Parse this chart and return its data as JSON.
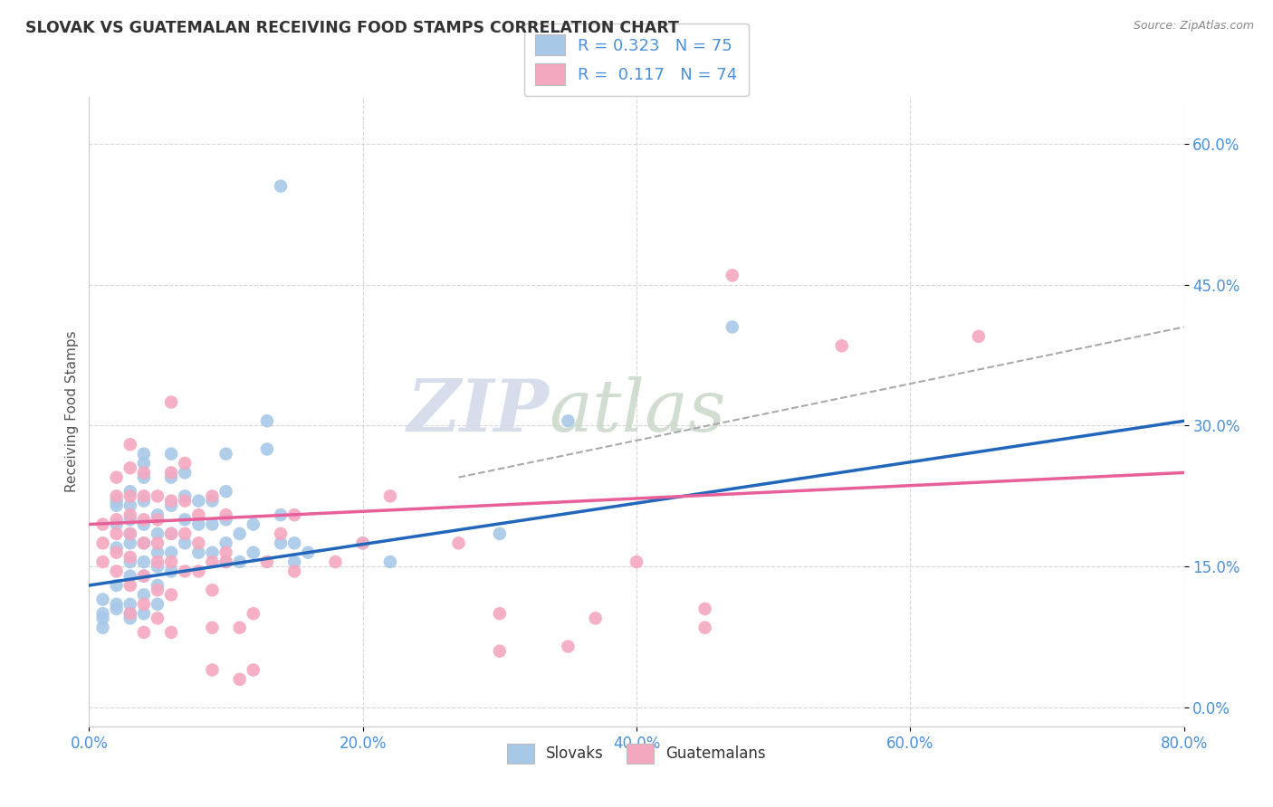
{
  "title": "SLOVAK VS GUATEMALAN RECEIVING FOOD STAMPS CORRELATION CHART",
  "source": "Source: ZipAtlas.com",
  "ylabel": "Receiving Food Stamps",
  "xlim": [
    0.0,
    0.8
  ],
  "ylim": [
    -0.02,
    0.65
  ],
  "slovak_color": "#a8c8e8",
  "guatemalan_color": "#f4a8c0",
  "slovak_line_color": "#2266bb",
  "guatemalan_line_color": "#e8609a",
  "dashed_line_color": "#aaaaaa",
  "legend_slovak_r": "0.323",
  "legend_slovak_n": "75",
  "legend_guatemalan_r": "0.117",
  "legend_guatemalan_n": "74",
  "watermark_zip": "ZIP",
  "watermark_atlas": "atlas",
  "title_color": "#333333",
  "axis_label_color": "#4a90d9",
  "slovak_line": [
    [
      0.0,
      0.13
    ],
    [
      0.8,
      0.305
    ]
  ],
  "guatemalan_line": [
    [
      0.0,
      0.195
    ],
    [
      0.8,
      0.25
    ]
  ],
  "dashed_line": [
    [
      0.27,
      0.245
    ],
    [
      0.8,
      0.405
    ]
  ],
  "slovak_points": [
    [
      0.01,
      0.115
    ],
    [
      0.01,
      0.085
    ],
    [
      0.01,
      0.1
    ],
    [
      0.01,
      0.095
    ],
    [
      0.02,
      0.105
    ],
    [
      0.02,
      0.11
    ],
    [
      0.02,
      0.13
    ],
    [
      0.02,
      0.17
    ],
    [
      0.02,
      0.195
    ],
    [
      0.02,
      0.215
    ],
    [
      0.02,
      0.22
    ],
    [
      0.03,
      0.095
    ],
    [
      0.03,
      0.1
    ],
    [
      0.03,
      0.11
    ],
    [
      0.03,
      0.14
    ],
    [
      0.03,
      0.155
    ],
    [
      0.03,
      0.175
    ],
    [
      0.03,
      0.185
    ],
    [
      0.03,
      0.2
    ],
    [
      0.03,
      0.215
    ],
    [
      0.03,
      0.23
    ],
    [
      0.04,
      0.1
    ],
    [
      0.04,
      0.12
    ],
    [
      0.04,
      0.14
    ],
    [
      0.04,
      0.155
    ],
    [
      0.04,
      0.175
    ],
    [
      0.04,
      0.195
    ],
    [
      0.04,
      0.22
    ],
    [
      0.04,
      0.245
    ],
    [
      0.04,
      0.26
    ],
    [
      0.04,
      0.27
    ],
    [
      0.05,
      0.11
    ],
    [
      0.05,
      0.13
    ],
    [
      0.05,
      0.15
    ],
    [
      0.05,
      0.165
    ],
    [
      0.05,
      0.185
    ],
    [
      0.05,
      0.205
    ],
    [
      0.06,
      0.145
    ],
    [
      0.06,
      0.165
    ],
    [
      0.06,
      0.185
    ],
    [
      0.06,
      0.215
    ],
    [
      0.06,
      0.245
    ],
    [
      0.06,
      0.27
    ],
    [
      0.07,
      0.175
    ],
    [
      0.07,
      0.2
    ],
    [
      0.07,
      0.225
    ],
    [
      0.07,
      0.25
    ],
    [
      0.08,
      0.165
    ],
    [
      0.08,
      0.195
    ],
    [
      0.08,
      0.22
    ],
    [
      0.09,
      0.165
    ],
    [
      0.09,
      0.195
    ],
    [
      0.09,
      0.22
    ],
    [
      0.1,
      0.155
    ],
    [
      0.1,
      0.175
    ],
    [
      0.1,
      0.2
    ],
    [
      0.1,
      0.23
    ],
    [
      0.1,
      0.27
    ],
    [
      0.11,
      0.155
    ],
    [
      0.11,
      0.185
    ],
    [
      0.12,
      0.165
    ],
    [
      0.12,
      0.195
    ],
    [
      0.13,
      0.275
    ],
    [
      0.13,
      0.305
    ],
    [
      0.14,
      0.175
    ],
    [
      0.14,
      0.205
    ],
    [
      0.14,
      0.555
    ],
    [
      0.15,
      0.155
    ],
    [
      0.15,
      0.175
    ],
    [
      0.16,
      0.165
    ],
    [
      0.2,
      0.175
    ],
    [
      0.22,
      0.155
    ],
    [
      0.3,
      0.185
    ],
    [
      0.35,
      0.305
    ],
    [
      0.47,
      0.405
    ]
  ],
  "guatemalan_points": [
    [
      0.01,
      0.155
    ],
    [
      0.01,
      0.175
    ],
    [
      0.01,
      0.195
    ],
    [
      0.02,
      0.145
    ],
    [
      0.02,
      0.165
    ],
    [
      0.02,
      0.185
    ],
    [
      0.02,
      0.2
    ],
    [
      0.02,
      0.225
    ],
    [
      0.02,
      0.245
    ],
    [
      0.03,
      0.1
    ],
    [
      0.03,
      0.13
    ],
    [
      0.03,
      0.16
    ],
    [
      0.03,
      0.185
    ],
    [
      0.03,
      0.205
    ],
    [
      0.03,
      0.225
    ],
    [
      0.03,
      0.255
    ],
    [
      0.03,
      0.28
    ],
    [
      0.04,
      0.08
    ],
    [
      0.04,
      0.11
    ],
    [
      0.04,
      0.14
    ],
    [
      0.04,
      0.175
    ],
    [
      0.04,
      0.2
    ],
    [
      0.04,
      0.225
    ],
    [
      0.04,
      0.25
    ],
    [
      0.05,
      0.095
    ],
    [
      0.05,
      0.125
    ],
    [
      0.05,
      0.155
    ],
    [
      0.05,
      0.175
    ],
    [
      0.05,
      0.2
    ],
    [
      0.05,
      0.225
    ],
    [
      0.06,
      0.08
    ],
    [
      0.06,
      0.12
    ],
    [
      0.06,
      0.155
    ],
    [
      0.06,
      0.185
    ],
    [
      0.06,
      0.22
    ],
    [
      0.06,
      0.25
    ],
    [
      0.06,
      0.325
    ],
    [
      0.07,
      0.145
    ],
    [
      0.07,
      0.185
    ],
    [
      0.07,
      0.22
    ],
    [
      0.07,
      0.26
    ],
    [
      0.08,
      0.145
    ],
    [
      0.08,
      0.175
    ],
    [
      0.08,
      0.205
    ],
    [
      0.09,
      0.04
    ],
    [
      0.09,
      0.085
    ],
    [
      0.09,
      0.125
    ],
    [
      0.09,
      0.155
    ],
    [
      0.09,
      0.225
    ],
    [
      0.1,
      0.155
    ],
    [
      0.1,
      0.165
    ],
    [
      0.1,
      0.205
    ],
    [
      0.11,
      0.03
    ],
    [
      0.11,
      0.085
    ],
    [
      0.12,
      0.04
    ],
    [
      0.12,
      0.1
    ],
    [
      0.13,
      0.155
    ],
    [
      0.14,
      0.185
    ],
    [
      0.15,
      0.145
    ],
    [
      0.15,
      0.205
    ],
    [
      0.18,
      0.155
    ],
    [
      0.2,
      0.175
    ],
    [
      0.22,
      0.225
    ],
    [
      0.27,
      0.175
    ],
    [
      0.3,
      0.06
    ],
    [
      0.3,
      0.1
    ],
    [
      0.35,
      0.065
    ],
    [
      0.37,
      0.095
    ],
    [
      0.4,
      0.155
    ],
    [
      0.45,
      0.085
    ],
    [
      0.45,
      0.105
    ],
    [
      0.47,
      0.46
    ],
    [
      0.55,
      0.385
    ],
    [
      0.65,
      0.395
    ]
  ]
}
